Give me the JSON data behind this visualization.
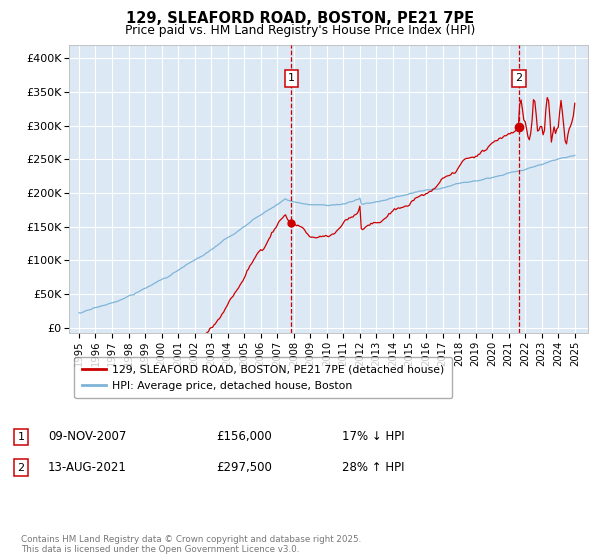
{
  "title": "129, SLEAFORD ROAD, BOSTON, PE21 7PE",
  "subtitle": "Price paid vs. HM Land Registry's House Price Index (HPI)",
  "plot_bg_color": "#dce9f5",
  "red_line_label": "129, SLEAFORD ROAD, BOSTON, PE21 7PE (detached house)",
  "blue_line_label": "HPI: Average price, detached house, Boston",
  "sale1_date": "09-NOV-2007",
  "sale1_price": "£156,000",
  "sale1_note": "17% ↓ HPI",
  "sale2_date": "13-AUG-2021",
  "sale2_price": "£297,500",
  "sale2_note": "28% ↑ HPI",
  "footer": "Contains HM Land Registry data © Crown copyright and database right 2025.\nThis data is licensed under the Open Government Licence v3.0.",
  "yticks": [
    0,
    50000,
    100000,
    150000,
    200000,
    250000,
    300000,
    350000,
    400000
  ],
  "ylim": [
    -8000,
    420000
  ],
  "vline1_x": 2007.86,
  "vline2_x": 2021.62,
  "sale1_y": 156000,
  "sale2_y": 297500,
  "hpi_at_sale1": 187952,
  "hpi_at_sale2": 232422,
  "red_color": "#cc0000",
  "blue_color": "#7fb4d8",
  "vline_color": "#cc0000",
  "grid_color": "#ffffff",
  "xlim_left": 1994.4,
  "xlim_right": 2025.8
}
